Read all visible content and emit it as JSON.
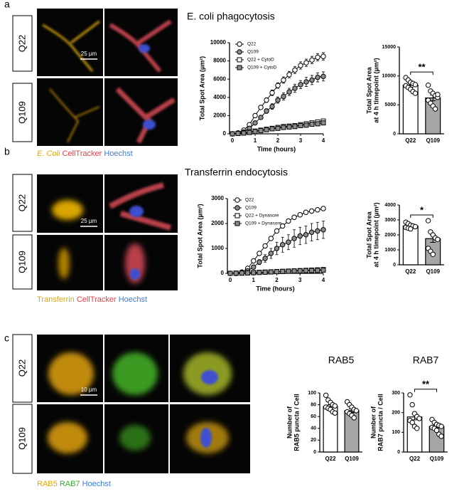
{
  "panel_labels": [
    "a",
    "b",
    "c"
  ],
  "images": [
    {
      "rows": [
        "Q22",
        "Q109"
      ],
      "scale_bar": "25 µm",
      "stains": [
        "E. Coli",
        "CellTracker",
        "Hoechst"
      ]
    },
    {
      "rows": [
        "Q22",
        "Q109"
      ],
      "scale_bar": "25 µm",
      "stains": [
        "Transferrin",
        "CellTracker",
        "Hoechst"
      ]
    },
    {
      "rows": [
        "Q22",
        "Q109"
      ],
      "scale_bar": "10 µm",
      "stains": [
        "RAB5",
        "RAB7",
        "Hoechst"
      ]
    }
  ],
  "chart_data": [
    {
      "type": "line",
      "title": "E. coli phagocytosis",
      "xlabel": "Time (hours)",
      "ylabel": "Total Spot Area (µm²)",
      "x": [
        0,
        0.25,
        0.5,
        0.75,
        1,
        1.25,
        1.5,
        1.75,
        2,
        2.25,
        2.5,
        2.75,
        3,
        3.25,
        3.5,
        3.75,
        4
      ],
      "xlim": [
        0,
        4
      ],
      "xticks": [
        0,
        1,
        2,
        3,
        4
      ],
      "ylim": [
        0,
        10000
      ],
      "yticks": [
        0,
        2000,
        4000,
        6000,
        8000,
        10000
      ],
      "series": [
        {
          "name": "Q22",
          "color": "#ffffff",
          "marker": "circle",
          "values": [
            0,
            100,
            400,
            1000,
            2000,
            2900,
            3700,
            4500,
            5300,
            5900,
            6500,
            7000,
            7500,
            7800,
            8100,
            8400,
            8500
          ],
          "errors": [
            0,
            20,
            50,
            100,
            150,
            200,
            250,
            300,
            300,
            350,
            350,
            400,
            400,
            400,
            400,
            400,
            400
          ]
        },
        {
          "name": "Q109",
          "color": "#8c8c8c",
          "marker": "circle",
          "values": [
            0,
            50,
            200,
            600,
            1200,
            1800,
            2500,
            3000,
            3700,
            4100,
            4600,
            5000,
            5400,
            5700,
            5900,
            6200,
            6300
          ],
          "errors": [
            0,
            20,
            50,
            100,
            150,
            200,
            250,
            300,
            350,
            400,
            400,
            450,
            450,
            500,
            500,
            500,
            500
          ]
        },
        {
          "name": "Q22 + CytoD",
          "color": "#ffffff",
          "marker": "square",
          "values": [
            0,
            50,
            100,
            200,
            300,
            400,
            500,
            600,
            700,
            800,
            850,
            900,
            1000,
            1100,
            1200,
            1300,
            1400
          ]
        },
        {
          "name": "Q109 + CytoD",
          "color": "#8c8c8c",
          "marker": "square",
          "values": [
            0,
            40,
            80,
            150,
            250,
            350,
            450,
            550,
            600,
            700,
            750,
            800,
            900,
            950,
            1050,
            1100,
            1200
          ]
        }
      ]
    },
    {
      "type": "bar",
      "ylabel": [
        "Total Spot Area",
        "at 4 h timepoint (µm²)"
      ],
      "categories": [
        "Q22",
        "Q109"
      ],
      "colors": [
        "#ffffff",
        "#a6a6a6"
      ],
      "values": [
        8400,
        6200
      ],
      "errors": [
        350,
        500
      ],
      "points": [
        [
          9700,
          9300,
          8900,
          8700,
          8500,
          8300,
          8000,
          7700,
          7300,
          7000
        ],
        [
          8400,
          7400,
          7000,
          6600,
          6300,
          5800,
          5300,
          4800,
          4300,
          6800
        ]
      ],
      "ylim": [
        0,
        15000
      ],
      "yticks": [
        0,
        5000,
        10000,
        15000
      ],
      "significance": "**"
    },
    {
      "type": "line",
      "title": "Transferrin endocytosis",
      "xlabel": "Time (hours)",
      "ylabel": "Total Spot Area (µm²)",
      "x": [
        0,
        0.25,
        0.5,
        0.75,
        1,
        1.25,
        1.5,
        1.75,
        2,
        2.25,
        2.5,
        2.75,
        3,
        3.25,
        3.5,
        3.75,
        4
      ],
      "xlim": [
        0,
        4
      ],
      "xticks": [
        0,
        1,
        2,
        3,
        4
      ],
      "ylim": [
        0,
        3000
      ],
      "yticks": [
        0,
        1000,
        2000,
        3000
      ],
      "series": [
        {
          "name": "Q22",
          "color": "#ffffff",
          "marker": "circle",
          "values": [
            0,
            0,
            50,
            200,
            500,
            800,
            1100,
            1400,
            1700,
            1900,
            2100,
            2250,
            2350,
            2450,
            2500,
            2550,
            2600
          ],
          "errors": [
            0,
            0,
            20,
            30,
            40,
            50,
            60,
            70,
            70,
            80,
            80,
            80,
            80,
            80,
            80,
            80,
            80
          ]
        },
        {
          "name": "Q109",
          "color": "#8c8c8c",
          "marker": "circle",
          "values": [
            0,
            0,
            30,
            100,
            250,
            450,
            600,
            800,
            1000,
            1150,
            1250,
            1400,
            1500,
            1550,
            1650,
            1700,
            1750
          ],
          "errors": [
            0,
            0,
            20,
            40,
            60,
            100,
            150,
            200,
            250,
            300,
            300,
            350,
            350,
            350,
            350,
            350,
            350
          ]
        },
        {
          "name": "Q22 + Dynasore",
          "color": "#ffffff",
          "marker": "square",
          "values": [
            0,
            5,
            10,
            20,
            30,
            40,
            50,
            60,
            70,
            80,
            90,
            100,
            110,
            120,
            130,
            140,
            150
          ]
        },
        {
          "name": "Q109 + Dynasore",
          "color": "#8c8c8c",
          "marker": "square",
          "values": [
            0,
            5,
            10,
            15,
            25,
            35,
            45,
            55,
            65,
            75,
            85,
            95,
            100,
            110,
            115,
            120,
            130
          ]
        }
      ]
    },
    {
      "type": "bar",
      "ylabel": [
        "Total Spot Area",
        "at 4 h timepoint (µm²)"
      ],
      "categories": [
        "Q22",
        "Q109"
      ],
      "colors": [
        "#ffffff",
        "#a6a6a6"
      ],
      "values": [
        2600,
        1750
      ],
      "errors": [
        80,
        250
      ],
      "points": [
        [
          2850,
          2750,
          2650,
          2600,
          2550,
          2500,
          2450,
          2400
        ],
        [
          2950,
          2200,
          2000,
          1800,
          1700,
          1100,
          900,
          700
        ]
      ],
      "ylim": [
        0,
        4000
      ],
      "yticks": [
        0,
        1000,
        2000,
        3000,
        4000
      ],
      "significance": "*"
    },
    {
      "type": "bar",
      "title": "RAB5",
      "ylabel": [
        "Number of",
        "RAB5 puncta / Cell"
      ],
      "categories": [
        "Q22",
        "Q109"
      ],
      "colors": [
        "#ffffff",
        "#a6a6a6"
      ],
      "values": [
        77,
        70
      ],
      "errors": [
        3,
        3
      ],
      "points": [
        [
          96,
          88,
          84,
          80,
          78,
          76,
          74,
          72,
          68,
          66
        ],
        [
          85,
          80,
          76,
          72,
          70,
          68,
          65,
          62,
          58
        ]
      ],
      "ylim": [
        0,
        100
      ],
      "yticks": [
        0,
        20,
        40,
        60,
        80,
        100
      ]
    },
    {
      "type": "bar",
      "title": "RAB7",
      "ylabel": [
        "Number of",
        "RAB7 puncta / Cell"
      ],
      "categories": [
        "Q22",
        "Q109"
      ],
      "colors": [
        "#ffffff",
        "#a6a6a6"
      ],
      "values": [
        178,
        130
      ],
      "errors": [
        15,
        8
      ],
      "points": [
        [
          290,
          240,
          195,
          180,
          170,
          160,
          150,
          130,
          120
        ],
        [
          165,
          150,
          140,
          135,
          130,
          125,
          120,
          110,
          90,
          80
        ]
      ],
      "ylim": [
        0,
        300
      ],
      "yticks": [
        0,
        100,
        200,
        300
      ],
      "significance": "**"
    }
  ]
}
